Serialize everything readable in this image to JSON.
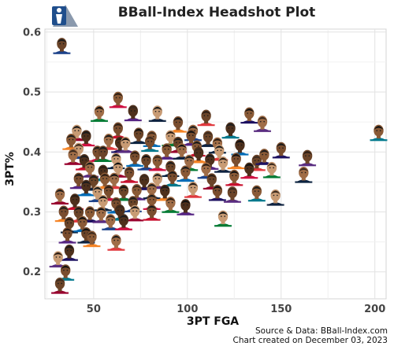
{
  "chart_data": {
    "type": "scatter",
    "title": "BBall-Index Headshot Plot",
    "xlabel": "3PT FGA",
    "ylabel": "3PT%",
    "xlim": [
      24,
      206
    ],
    "ylim": [
      0.155,
      0.605
    ],
    "x_ticks": [
      50,
      100,
      150,
      200
    ],
    "y_ticks": [
      0.2,
      0.3,
      0.4,
      0.5,
      0.6
    ],
    "x_tick_labels": [
      "50",
      "100",
      "150",
      "200"
    ],
    "y_tick_labels": [
      "0.2",
      "0.3",
      "0.4",
      "0.5",
      "0.6"
    ],
    "grid": true,
    "credit_line1": "Source & Data: BBall-Index.com",
    "credit_line2": "Chart created on December 03, 2023",
    "logo_icon": "bball-index-logo-icon",
    "points": [
      {
        "x": 33,
        "y": 0.578
      },
      {
        "x": 63,
        "y": 0.488
      },
      {
        "x": 53,
        "y": 0.465
      },
      {
        "x": 71,
        "y": 0.466
      },
      {
        "x": 84,
        "y": 0.465
      },
      {
        "x": 95,
        "y": 0.447
      },
      {
        "x": 110,
        "y": 0.458
      },
      {
        "x": 133,
        "y": 0.462
      },
      {
        "x": 140,
        "y": 0.448
      },
      {
        "x": 123,
        "y": 0.437
      },
      {
        "x": 41,
        "y": 0.433
      },
      {
        "x": 63,
        "y": 0.437
      },
      {
        "x": 74,
        "y": 0.428
      },
      {
        "x": 81,
        "y": 0.423
      },
      {
        "x": 103,
        "y": 0.433
      },
      {
        "x": 46,
        "y": 0.424
      },
      {
        "x": 91,
        "y": 0.424
      },
      {
        "x": 102,
        "y": 0.425
      },
      {
        "x": 111,
        "y": 0.423
      },
      {
        "x": 38,
        "y": 0.418
      },
      {
        "x": 58,
        "y": 0.418
      },
      {
        "x": 64,
        "y": 0.413
      },
      {
        "x": 67,
        "y": 0.413
      },
      {
        "x": 80,
        "y": 0.415
      },
      {
        "x": 95,
        "y": 0.413
      },
      {
        "x": 105,
        "y": 0.407
      },
      {
        "x": 116,
        "y": 0.412
      },
      {
        "x": 128,
        "y": 0.409
      },
      {
        "x": 42,
        "y": 0.403
      },
      {
        "x": 52,
        "y": 0.398
      },
      {
        "x": 55,
        "y": 0.398
      },
      {
        "x": 89,
        "y": 0.402
      },
      {
        "x": 97,
        "y": 0.402
      },
      {
        "x": 106,
        "y": 0.396
      },
      {
        "x": 117,
        "y": 0.4
      },
      {
        "x": 150,
        "y": 0.404
      },
      {
        "x": 164,
        "y": 0.391
      },
      {
        "x": 202,
        "y": 0.433
      },
      {
        "x": 39,
        "y": 0.393
      },
      {
        "x": 45,
        "y": 0.384
      },
      {
        "x": 62,
        "y": 0.386
      },
      {
        "x": 72,
        "y": 0.39
      },
      {
        "x": 78,
        "y": 0.384
      },
      {
        "x": 84,
        "y": 0.383
      },
      {
        "x": 101,
        "y": 0.383
      },
      {
        "x": 112,
        "y": 0.385
      },
      {
        "x": 119,
        "y": 0.38
      },
      {
        "x": 126,
        "y": 0.386
      },
      {
        "x": 137,
        "y": 0.383
      },
      {
        "x": 141,
        "y": 0.393
      },
      {
        "x": 48,
        "y": 0.372
      },
      {
        "x": 55,
        "y": 0.366
      },
      {
        "x": 63,
        "y": 0.372
      },
      {
        "x": 69,
        "y": 0.363
      },
      {
        "x": 91,
        "y": 0.373
      },
      {
        "x": 99,
        "y": 0.365
      },
      {
        "x": 110,
        "y": 0.37
      },
      {
        "x": 133,
        "y": 0.37
      },
      {
        "x": 145,
        "y": 0.371
      },
      {
        "x": 42,
        "y": 0.353
      },
      {
        "x": 50,
        "y": 0.35
      },
      {
        "x": 56,
        "y": 0.353
      },
      {
        "x": 61,
        "y": 0.353
      },
      {
        "x": 77,
        "y": 0.351
      },
      {
        "x": 84,
        "y": 0.353
      },
      {
        "x": 92,
        "y": 0.357
      },
      {
        "x": 113,
        "y": 0.352
      },
      {
        "x": 125,
        "y": 0.358
      },
      {
        "x": 162,
        "y": 0.363
      },
      {
        "x": 46,
        "y": 0.341
      },
      {
        "x": 52,
        "y": 0.331
      },
      {
        "x": 58,
        "y": 0.333
      },
      {
        "x": 66,
        "y": 0.333
      },
      {
        "x": 73,
        "y": 0.334
      },
      {
        "x": 81,
        "y": 0.336
      },
      {
        "x": 88,
        "y": 0.333
      },
      {
        "x": 103,
        "y": 0.338
      },
      {
        "x": 116,
        "y": 0.333
      },
      {
        "x": 124,
        "y": 0.33
      },
      {
        "x": 137,
        "y": 0.332
      },
      {
        "x": 32,
        "y": 0.327
      },
      {
        "x": 40,
        "y": 0.318
      },
      {
        "x": 55,
        "y": 0.316
      },
      {
        "x": 62,
        "y": 0.312
      },
      {
        "x": 71,
        "y": 0.314
      },
      {
        "x": 81,
        "y": 0.318
      },
      {
        "x": 91,
        "y": 0.313
      },
      {
        "x": 99,
        "y": 0.309
      },
      {
        "x": 147,
        "y": 0.325
      },
      {
        "x": 34,
        "y": 0.298
      },
      {
        "x": 42,
        "y": 0.297
      },
      {
        "x": 48,
        "y": 0.297
      },
      {
        "x": 54,
        "y": 0.296
      },
      {
        "x": 64,
        "y": 0.3
      },
      {
        "x": 72,
        "y": 0.299
      },
      {
        "x": 81,
        "y": 0.3
      },
      {
        "x": 37,
        "y": 0.279
      },
      {
        "x": 44,
        "y": 0.281
      },
      {
        "x": 59,
        "y": 0.284
      },
      {
        "x": 66,
        "y": 0.284
      },
      {
        "x": 119,
        "y": 0.29
      },
      {
        "x": 36,
        "y": 0.262
      },
      {
        "x": 46,
        "y": 0.262
      },
      {
        "x": 49,
        "y": 0.256
      },
      {
        "x": 62,
        "y": 0.25
      },
      {
        "x": 37,
        "y": 0.233
      },
      {
        "x": 31,
        "y": 0.222
      },
      {
        "x": 35,
        "y": 0.2
      },
      {
        "x": 32,
        "y": 0.178
      }
    ]
  }
}
